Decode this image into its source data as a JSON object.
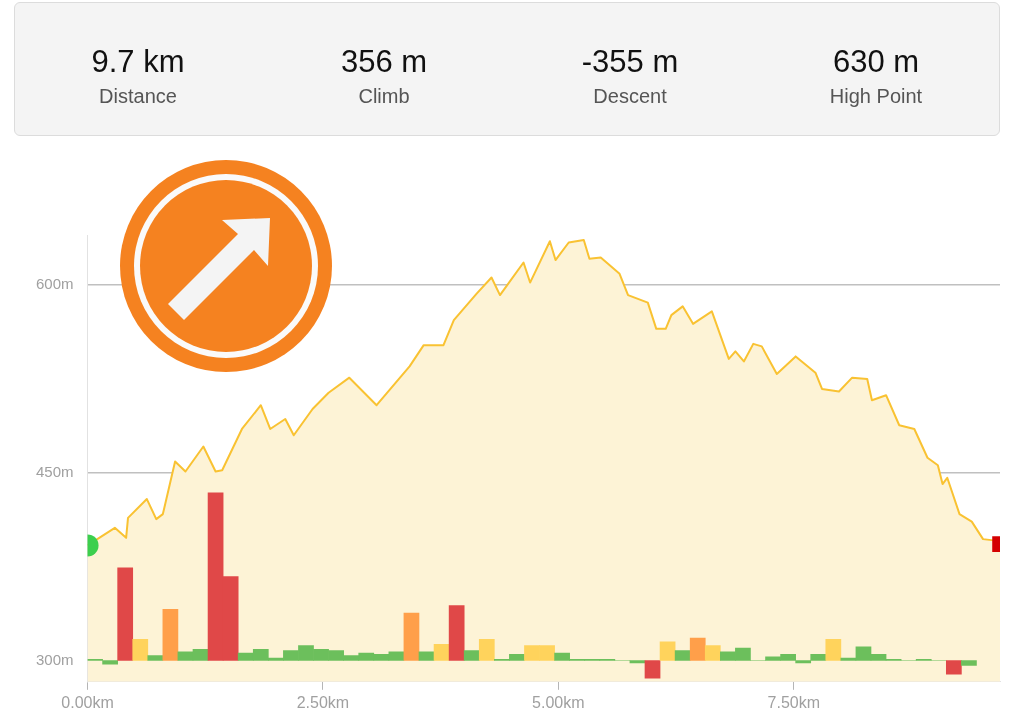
{
  "chart_data": [
    {
      "type": "other",
      "categories": [
        "Distance",
        "Climb",
        "Descent",
        "High Point"
      ],
      "values": [
        9.7,
        356,
        -355,
        630
      ],
      "value_labels": [
        "9.7 km",
        "356 m",
        "-355 m",
        "630 m"
      ]
    },
    {
      "type": "area",
      "xlim": [
        0,
        9.69
      ],
      "ylim": [
        283,
        640
      ],
      "xticks": [
        {
          "value": 0,
          "label": "0.00km"
        },
        {
          "value": 2.5,
          "label": "2.50km"
        },
        {
          "value": 5,
          "label": "5.00km"
        },
        {
          "value": 7.5,
          "label": "7.50km"
        }
      ],
      "yticks": [
        {
          "value": 300,
          "label": "300m"
        },
        {
          "value": 450,
          "label": "450m"
        },
        {
          "value": 600,
          "label": "600m"
        }
      ],
      "grid": "y",
      "legend": false,
      "series": [
        {
          "type": "area",
          "color": "#f9c232",
          "x": [
            0,
            0.29,
            0.41,
            0.43,
            0.63,
            0.73,
            0.8,
            0.93,
            1.04,
            1.23,
            1.36,
            1.43,
            1.64,
            1.84,
            1.94,
            2.1,
            2.19,
            2.39,
            2.56,
            2.78,
            3.07,
            3.42,
            3.57,
            3.78,
            3.89,
            4.13,
            4.29,
            4.38,
            4.63,
            4.7,
            4.91,
            4.97,
            5.11,
            5.27,
            5.33,
            5.45,
            5.65,
            5.74,
            5.95,
            6.04,
            6.14,
            6.2,
            6.32,
            6.43,
            6.63,
            6.81,
            6.88,
            6.97,
            7.07,
            7.16,
            7.32,
            7.52,
            7.73,
            7.8,
            7.98,
            8.12,
            8.28,
            8.33,
            8.48,
            8.62,
            8.78,
            8.92,
            9.03,
            9.08,
            9.13,
            9.26,
            9.39,
            9.51,
            9.62,
            9.69
          ],
          "values": [
            392,
            406,
            398,
            414,
            429,
            413,
            417,
            459,
            451,
            471,
            451,
            452,
            485,
            504,
            485,
            493,
            480,
            501,
            514,
            526,
            504,
            535,
            552,
            552,
            572,
            593,
            606,
            592,
            618,
            602,
            635,
            620,
            634,
            636,
            621,
            622,
            609,
            592,
            586,
            565,
            565,
            576,
            583,
            569,
            579,
            541,
            547,
            539,
            553,
            551,
            529,
            543,
            530,
            517,
            515,
            526,
            525,
            508,
            512,
            488,
            485,
            462,
            456,
            441,
            446,
            417,
            411,
            397,
            396,
            393
          ]
        },
        {
          "type": "bar",
          "x": [
            0.08,
            0.24,
            0.4,
            0.56,
            0.72,
            0.88,
            1.04,
            1.2,
            1.36,
            1.52,
            1.68,
            1.84,
            2.0,
            2.16,
            2.32,
            2.48,
            2.64,
            2.8,
            2.96,
            3.12,
            3.28,
            3.44,
            3.6,
            3.76,
            3.92,
            4.08,
            4.24,
            4.4,
            4.56,
            4.72,
            4.88,
            5.04,
            5.2,
            5.36,
            5.52,
            5.68,
            5.84,
            6.0,
            6.16,
            6.32,
            6.48,
            6.64,
            6.8,
            6.96,
            7.12,
            7.28,
            7.44,
            7.6,
            7.76,
            7.92,
            8.08,
            8.24,
            8.4,
            8.56,
            8.72,
            8.88,
            9.04,
            9.2,
            9.36
          ],
          "base": [
            300,
            300,
            300,
            300,
            300,
            300,
            300,
            300,
            300,
            300,
            300,
            300,
            300,
            300,
            300,
            300,
            300,
            300,
            300,
            300,
            300,
            300,
            300,
            300,
            300,
            300,
            300,
            300,
            300,
            300,
            300,
            300,
            300,
            300,
            300,
            300,
            300,
            300,
            300,
            300,
            300,
            300,
            300,
            300,
            300,
            300,
            300,
            300,
            300,
            300,
            300,
            300,
            300,
            300,
            300,
            300,
            300,
            300,
            300
          ],
          "values": [
            1,
            -3,
            74,
            17,
            4,
            41,
            7,
            9,
            134,
            67,
            6,
            9,
            2,
            8,
            12,
            9,
            8,
            4,
            6,
            5,
            7,
            38,
            7,
            13,
            44,
            8,
            17,
            1,
            5,
            12,
            12,
            6,
            1,
            1,
            1,
            0,
            -2,
            -14,
            15,
            8,
            18,
            12,
            7,
            10,
            0,
            3,
            5,
            -2,
            5,
            17,
            2,
            11,
            5,
            1,
            0,
            1,
            0,
            -11,
            -4
          ],
          "colors": [
            "#6cbf5c",
            "#6cbf5c",
            "#e04848",
            "#ffd35c",
            "#6cbf5c",
            "#ff9f4a",
            "#6cbf5c",
            "#6cbf5c",
            "#e04848",
            "#e04848",
            "#6cbf5c",
            "#6cbf5c",
            "#6cbf5c",
            "#6cbf5c",
            "#6cbf5c",
            "#6cbf5c",
            "#6cbf5c",
            "#6cbf5c",
            "#6cbf5c",
            "#6cbf5c",
            "#6cbf5c",
            "#ff9f4a",
            "#6cbf5c",
            "#ffd35c",
            "#e04848",
            "#6cbf5c",
            "#ffd35c",
            "#6cbf5c",
            "#6cbf5c",
            "#ffd35c",
            "#ffd35c",
            "#6cbf5c",
            "#6cbf5c",
            "#6cbf5c",
            "#6cbf5c",
            "#6cbf5c",
            "#6cbf5c",
            "#e04848",
            "#ffd35c",
            "#6cbf5c",
            "#ff9f4a",
            "#ffd35c",
            "#6cbf5c",
            "#6cbf5c",
            "#6cbf5c",
            "#6cbf5c",
            "#6cbf5c",
            "#6cbf5c",
            "#6cbf5c",
            "#ffd35c",
            "#6cbf5c",
            "#6cbf5c",
            "#6cbf5c",
            "#6cbf5c",
            "#6cbf5c",
            "#6cbf5c",
            "#6cbf5c",
            "#e04848",
            "#6cbf5c"
          ]
        },
        {
          "type": "scatter",
          "marker": "circle",
          "color": "#3ccf4e",
          "x": [
            0
          ],
          "values": [
            392
          ]
        },
        {
          "type": "scatter",
          "marker": "square",
          "color": "#d40000",
          "x": [
            9.69
          ],
          "values": [
            393
          ]
        }
      ]
    }
  ]
}
